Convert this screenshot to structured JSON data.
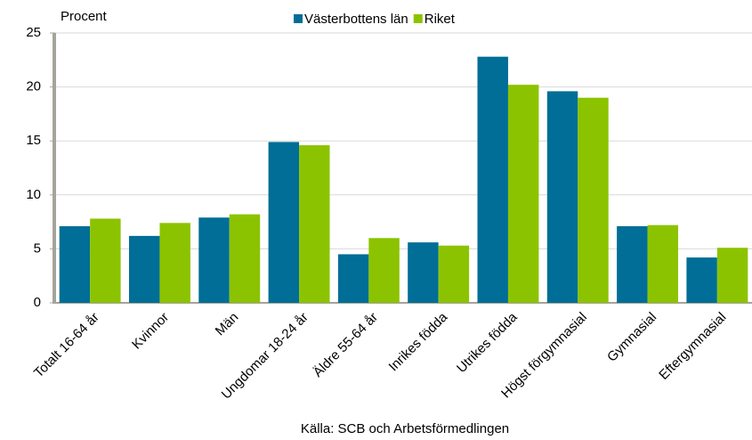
{
  "chart_data": {
    "type": "bar",
    "y_axis_label": "Procent",
    "source": "Källa: SCB och Arbetsförmedlingen",
    "categories": [
      "Totalt 16-64 år",
      "Kvinnor",
      "Män",
      "Ungdomar 18-24 år",
      "Äldre 55-64 år",
      "Inrikes födda",
      "Utrikes födda",
      "Högst förgymnasial",
      "Gymnasial",
      "Eftergymnasial"
    ],
    "series": [
      {
        "name": "Västerbottens län",
        "color": "#006e96",
        "values": [
          7.1,
          6.2,
          7.9,
          14.9,
          4.5,
          5.6,
          22.8,
          19.6,
          7.1,
          4.2
        ]
      },
      {
        "name": "Riket",
        "color": "#8cc300",
        "values": [
          7.8,
          7.4,
          8.2,
          14.6,
          6.0,
          5.3,
          20.2,
          19.0,
          7.2,
          5.1
        ]
      }
    ],
    "ylim": [
      0,
      25
    ],
    "yticks": [
      0,
      5,
      10,
      15,
      20,
      25
    ],
    "grid": true,
    "legend": "top"
  }
}
